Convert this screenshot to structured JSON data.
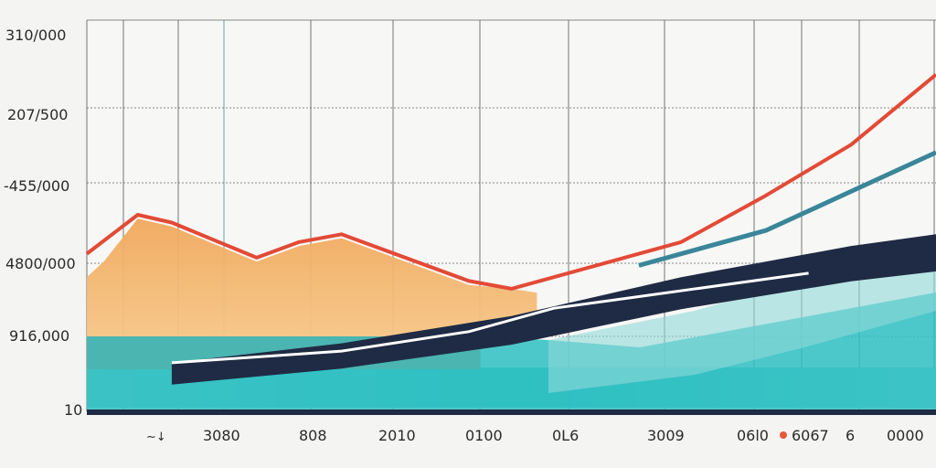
{
  "chart_data": {
    "type": "area",
    "title": "",
    "xlabel": "",
    "ylabel": "",
    "grid": true,
    "y_tick_labels": [
      "310/000",
      "207/500",
      "-455/000",
      "4800/000",
      "916,000",
      "10"
    ],
    "x_tick_labels": [
      "3080",
      "808",
      "2010",
      "0100",
      "0L6",
      "3009",
      "06l0",
      "6067",
      "6",
      "0000"
    ],
    "x_tick_small": "∼↓",
    "ylim": [
      0,
      100
    ],
    "xlim": [
      0,
      100
    ],
    "legend_marker_color": "#e8553a",
    "colors": {
      "red_line": "#e34a36",
      "orange_area": "#f3b56b",
      "orange_band": "#ec7c4f",
      "teal_light": "#7fd3d2",
      "teal": "#2fc0c2",
      "navy": "#1f2b44",
      "steel": "#3a8699",
      "grid": "#3a3a3a"
    },
    "series": [
      {
        "kind": "line",
        "color": "#e34a36",
        "x": [
          0,
          6,
          10,
          20,
          25,
          30,
          45,
          50,
          60,
          70,
          80,
          90,
          100
        ],
        "y": [
          40,
          50,
          48,
          39,
          43,
          45,
          33,
          31,
          37,
          43,
          55,
          68,
          86
        ]
      },
      {
        "kind": "area",
        "color": "#f3b56b",
        "x": [
          0,
          2,
          6,
          10,
          20,
          25,
          30,
          45,
          50,
          53
        ],
        "y": [
          34,
          38,
          49,
          47,
          38,
          42,
          44,
          32,
          31,
          30
        ]
      },
      {
        "kind": "line",
        "color": "#3a8699",
        "x": [
          65,
          80,
          90,
          100
        ],
        "y": [
          37,
          46,
          56,
          66
        ]
      },
      {
        "kind": "area",
        "color": "#1f2b44",
        "x": [
          10,
          30,
          50,
          70,
          90,
          100
        ],
        "y": [
          12,
          17,
          24,
          34,
          42,
          45
        ]
      },
      {
        "kind": "line",
        "color": "#ffffff",
        "x": [
          10,
          30,
          45,
          55,
          65,
          85
        ],
        "y": [
          12,
          15,
          20,
          26,
          29,
          35
        ]
      }
    ]
  }
}
